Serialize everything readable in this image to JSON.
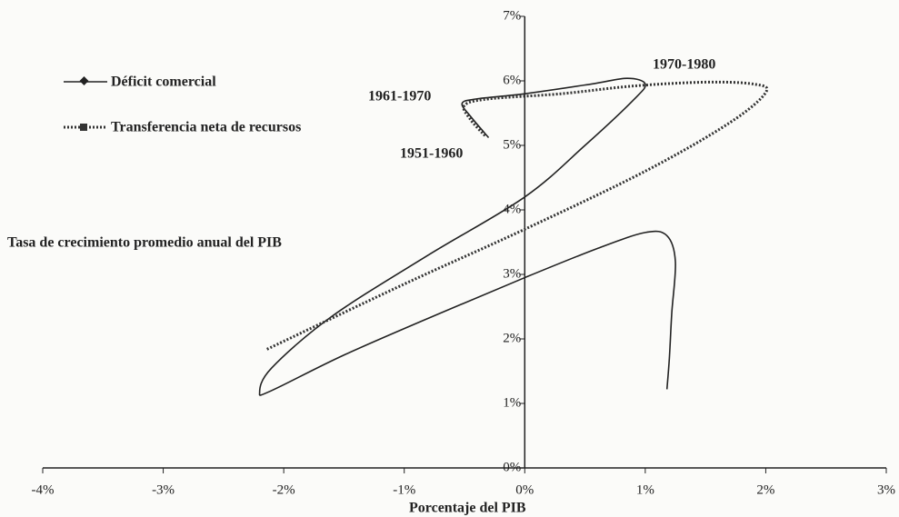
{
  "chart_data": {
    "type": "line",
    "xlabel": "Porcentaje del PIB",
    "ylabel": "Tasa de crecimiento promedio anual del PIB",
    "xlim": [
      -4,
      3
    ],
    "xticks": [
      {
        "value": -4,
        "label": "-4%"
      },
      {
        "value": -3,
        "label": "-3%"
      },
      {
        "value": -2,
        "label": "-2%"
      },
      {
        "value": -1,
        "label": "-1%"
      },
      {
        "value": 0,
        "label": "0%"
      },
      {
        "value": 1,
        "label": "1%"
      },
      {
        "value": 2,
        "label": "2%"
      },
      {
        "value": 3,
        "label": "3%"
      }
    ],
    "ylim": [
      0,
      7
    ],
    "yticks": [
      {
        "value": 0,
        "label": "0%"
      },
      {
        "value": 1,
        "label": "1%"
      },
      {
        "value": 2,
        "label": "2%"
      },
      {
        "value": 3,
        "label": "3%"
      },
      {
        "value": 4,
        "label": "4%"
      },
      {
        "value": 5,
        "label": "5%"
      },
      {
        "value": 6,
        "label": "6%"
      },
      {
        "value": 7,
        "label": "7%"
      }
    ],
    "legend": "upper left",
    "annotations": [
      "1951-1960",
      "1961-1970",
      "1970-1980"
    ],
    "series": [
      {
        "name": "Déficit comercial",
        "color": "#222222",
        "style": "solid",
        "x": [
          -0.3,
          -0.45,
          -0.52,
          -0.4,
          0.0,
          0.55,
          0.85,
          1.0,
          0.9,
          0.5,
          0.0,
          -0.8,
          -1.6,
          -2.1,
          -2.2,
          -2.1,
          -1.5,
          -0.7,
          0.0,
          0.6,
          1.0,
          1.18,
          1.25,
          1.22,
          1.2,
          1.18
        ],
        "values": [
          5.12,
          5.45,
          5.65,
          5.72,
          5.8,
          5.95,
          6.04,
          5.95,
          5.7,
          5.0,
          4.2,
          3.3,
          2.35,
          1.55,
          1.17,
          1.2,
          1.75,
          2.4,
          2.95,
          3.4,
          3.65,
          3.6,
          3.2,
          2.4,
          1.7,
          1.22
        ]
      },
      {
        "name": "Transferencia neta de recursos",
        "color": "#333333",
        "style": "dotted",
        "x": [
          -0.33,
          -0.45,
          -0.5,
          -0.3,
          0.3,
          0.9,
          1.5,
          1.9,
          2.0,
          1.7,
          1.0,
          0.0,
          -1.0,
          -2.15
        ],
        "values": [
          5.15,
          5.4,
          5.62,
          5.72,
          5.8,
          5.92,
          5.98,
          5.95,
          5.82,
          5.35,
          4.6,
          3.7,
          2.85,
          1.83
        ]
      }
    ]
  }
}
